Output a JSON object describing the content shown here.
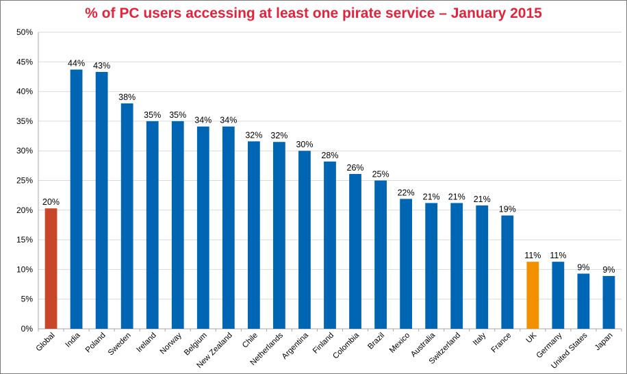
{
  "chart_data": {
    "type": "bar",
    "title": "% of PC users accessing at least one pirate service – January 2015",
    "xlabel": "",
    "ylabel": "",
    "ylim": [
      0,
      50
    ],
    "yticks": [
      "0%",
      "5%",
      "10%",
      "15%",
      "20%",
      "25%",
      "30%",
      "35%",
      "40%",
      "45%",
      "50%"
    ],
    "grid": true,
    "categories": [
      "Global",
      "India",
      "Poland",
      "Sweden",
      "Ireland",
      "Norway",
      "Belgium",
      "New Zealand",
      "Chile",
      "Netherlands",
      "Argentina",
      "Finland",
      "Colombia",
      "Brazil",
      "Mexico",
      "Australia",
      "Switzerland",
      "Italy",
      "France",
      "UK",
      "Germany",
      "United States",
      "Japan"
    ],
    "values": [
      20.3,
      43.7,
      43.3,
      38.0,
      35.0,
      35.0,
      34.1,
      34.1,
      31.6,
      31.5,
      30.0,
      28.2,
      26.1,
      25.0,
      21.9,
      21.2,
      21.2,
      20.8,
      19.1,
      11.3,
      11.3,
      9.3,
      8.9
    ],
    "data_labels": [
      "20%",
      "44%",
      "43%",
      "38%",
      "35%",
      "35%",
      "34%",
      "34%",
      "32%",
      "32%",
      "30%",
      "28%",
      "26%",
      "25%",
      "22%",
      "21%",
      "21%",
      "21%",
      "19%",
      "11%",
      "11%",
      "9%",
      "9%"
    ],
    "colors": {
      "default": "#0066b3",
      "Global": "#c8472b",
      "UK": "#f29100",
      "title": "#e0243c",
      "grid": "#d9d9d9",
      "axis": "#a6a6a6"
    }
  }
}
